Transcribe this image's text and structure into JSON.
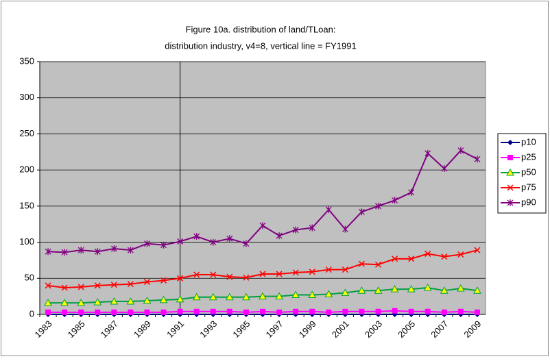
{
  "chart_data": {
    "type": "line",
    "title_lines": [
      "Figure 10a. distribution of land/TLoan:",
      "distribution industry, v4=8, vertical line = FY1991"
    ],
    "categories": [
      "1983",
      null,
      "1985",
      null,
      "1987",
      null,
      "1989",
      null,
      "1991",
      null,
      "1993",
      null,
      "1995",
      null,
      "1997",
      null,
      "1999",
      null,
      "2001",
      null,
      "2003",
      null,
      "2005",
      null,
      "2007",
      null,
      "2009"
    ],
    "vertical_line_at": "1991",
    "ylim": [
      0,
      350
    ],
    "yticks": [
      0,
      50,
      100,
      150,
      200,
      250,
      300,
      350
    ],
    "grid": true,
    "legend": "right",
    "series": [
      {
        "name": "p10",
        "color": "#000080",
        "marker": "diamond",
        "values": [
          0,
          0,
          0,
          0,
          0,
          0,
          0,
          0,
          0,
          0,
          0,
          0,
          0,
          0,
          0,
          0,
          0,
          0,
          0,
          0,
          0,
          0,
          0,
          0,
          0,
          0,
          0
        ]
      },
      {
        "name": "p25",
        "color": "#ff00ff",
        "marker": "square",
        "values": [
          3,
          3,
          3,
          3,
          3,
          3,
          3,
          3,
          4,
          4,
          4,
          4,
          3,
          4,
          3,
          4,
          4,
          3,
          4,
          4,
          4,
          5,
          4,
          4,
          3,
          4,
          3
        ]
      },
      {
        "name": "p50",
        "color": "#00a040",
        "marker": "triangle",
        "values": [
          16,
          16,
          16,
          17,
          18,
          18,
          19,
          20,
          21,
          24,
          24,
          24,
          24,
          25,
          25,
          27,
          27,
          28,
          30,
          33,
          33,
          35,
          35,
          37,
          33,
          36,
          33
        ]
      },
      {
        "name": "p75",
        "color": "#ff0000",
        "marker": "x",
        "values": [
          40,
          37,
          38,
          40,
          41,
          42,
          45,
          47,
          50,
          55,
          55,
          52,
          51,
          56,
          56,
          58,
          59,
          62,
          62,
          70,
          69,
          77,
          77,
          84,
          80,
          83,
          89
        ]
      },
      {
        "name": "p90",
        "color": "#800080",
        "marker": "star",
        "values": [
          87,
          86,
          89,
          87,
          91,
          89,
          98,
          96,
          101,
          108,
          100,
          105,
          98,
          123,
          109,
          117,
          120,
          145,
          118,
          142,
          150,
          158,
          169,
          223,
          202,
          227,
          215
        ]
      }
    ]
  }
}
